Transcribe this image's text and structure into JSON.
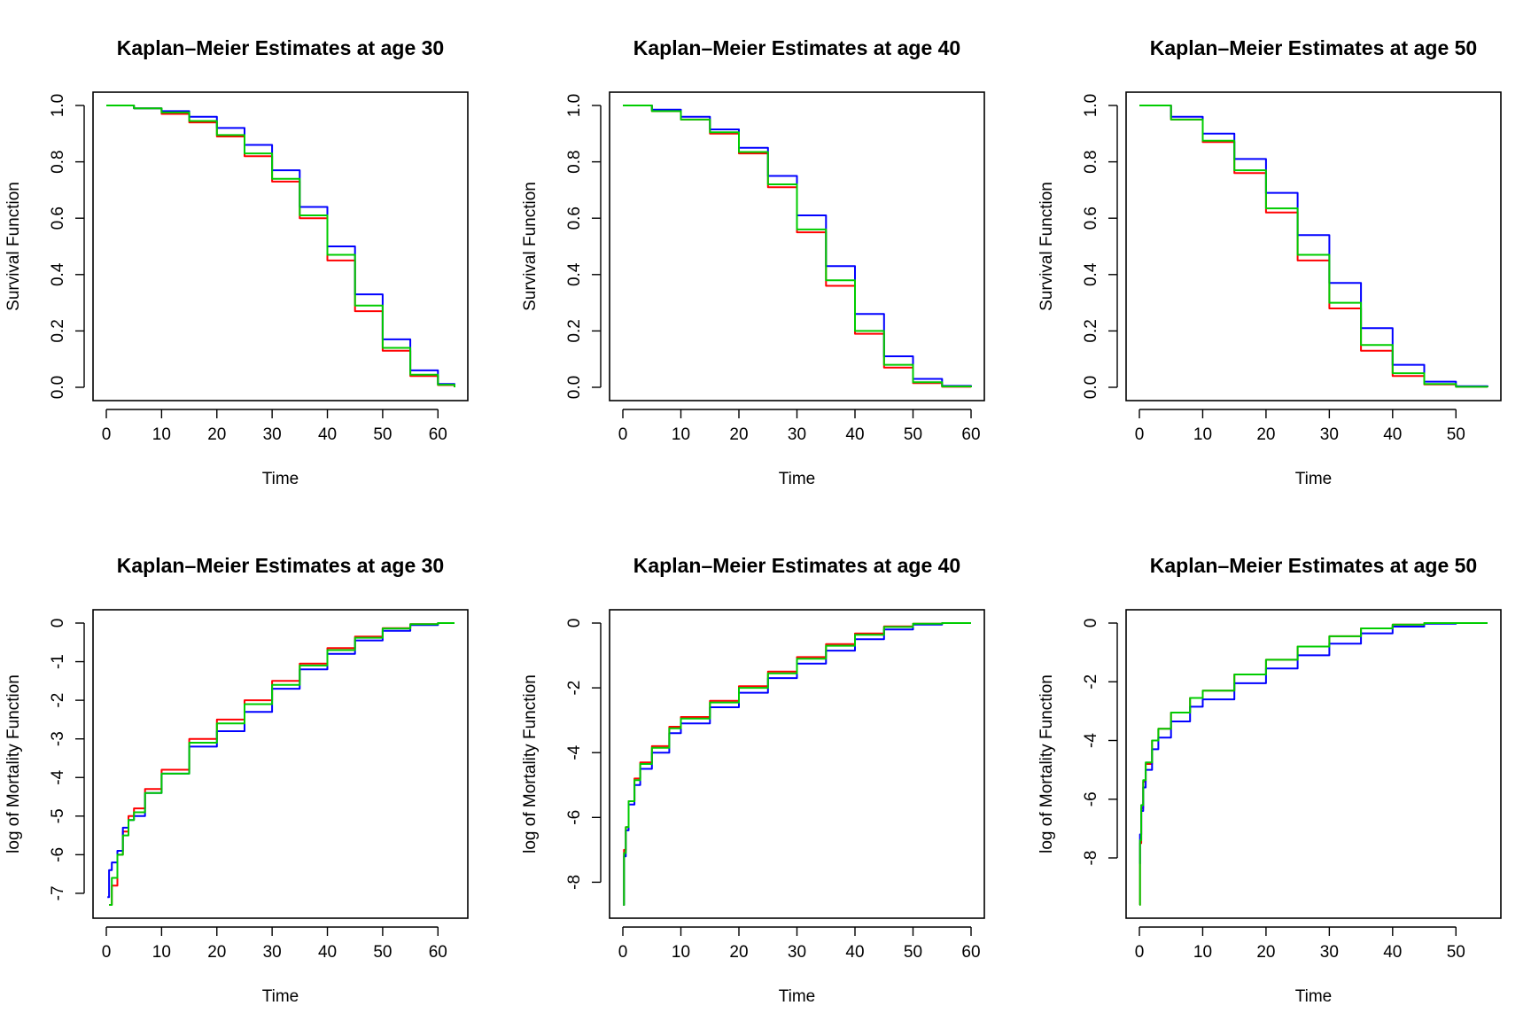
{
  "figure": {
    "background": "#ffffff"
  },
  "series_colors": [
    "#ff0000",
    "#0000ff",
    "#00cc00"
  ],
  "chart_data": [
    {
      "type": "line",
      "title": "Kaplan–Meier Estimates at age 30",
      "xlabel": "Time",
      "ylabel": "Survival Function",
      "xlim": [
        0,
        63
      ],
      "ylim": [
        0,
        1
      ],
      "xticks": [
        0,
        10,
        20,
        30,
        40,
        50,
        60
      ],
      "yticks": [
        0.0,
        0.2,
        0.4,
        0.6,
        0.8,
        1.0
      ],
      "ytick_labels": [
        "0.0",
        "0.2",
        "0.4",
        "0.6",
        "0.8",
        "1.0"
      ],
      "grid": false,
      "series": [
        {
          "color": "#ff0000",
          "x": [
            0,
            5,
            10,
            15,
            20,
            25,
            30,
            35,
            40,
            45,
            50,
            55,
            60,
            63
          ],
          "y": [
            1.0,
            0.99,
            0.97,
            0.94,
            0.89,
            0.82,
            0.73,
            0.6,
            0.45,
            0.27,
            0.13,
            0.04,
            0.008,
            0.0
          ]
        },
        {
          "color": "#0000ff",
          "x": [
            0,
            5,
            10,
            15,
            20,
            25,
            30,
            35,
            40,
            45,
            50,
            55,
            60,
            63
          ],
          "y": [
            1.0,
            0.99,
            0.98,
            0.96,
            0.92,
            0.86,
            0.77,
            0.64,
            0.5,
            0.33,
            0.17,
            0.06,
            0.012,
            0.0
          ]
        },
        {
          "color": "#00cc00",
          "x": [
            0,
            5,
            10,
            15,
            20,
            25,
            30,
            35,
            40,
            45,
            50,
            55,
            60,
            63
          ],
          "y": [
            1.0,
            0.99,
            0.975,
            0.945,
            0.895,
            0.83,
            0.74,
            0.61,
            0.47,
            0.29,
            0.14,
            0.045,
            0.009,
            0.0
          ]
        }
      ]
    },
    {
      "type": "line",
      "title": "Kaplan–Meier Estimates at age 40",
      "xlabel": "Time",
      "ylabel": "Survival Function",
      "xlim": [
        0,
        60
      ],
      "ylim": [
        0,
        1
      ],
      "xticks": [
        0,
        10,
        20,
        30,
        40,
        50,
        60
      ],
      "yticks": [
        0.0,
        0.2,
        0.4,
        0.6,
        0.8,
        1.0
      ],
      "ytick_labels": [
        "0.0",
        "0.2",
        "0.4",
        "0.6",
        "0.8",
        "1.0"
      ],
      "grid": false,
      "series": [
        {
          "color": "#ff0000",
          "x": [
            0,
            5,
            10,
            15,
            20,
            25,
            30,
            35,
            40,
            45,
            50,
            55,
            60
          ],
          "y": [
            1.0,
            0.98,
            0.95,
            0.9,
            0.83,
            0.71,
            0.55,
            0.36,
            0.19,
            0.07,
            0.015,
            0.002,
            0.0
          ]
        },
        {
          "color": "#0000ff",
          "x": [
            0,
            5,
            10,
            15,
            20,
            25,
            30,
            35,
            40,
            45,
            50,
            55,
            60
          ],
          "y": [
            1.0,
            0.985,
            0.96,
            0.915,
            0.85,
            0.75,
            0.61,
            0.43,
            0.26,
            0.11,
            0.03,
            0.005,
            0.0
          ]
        },
        {
          "color": "#00cc00",
          "x": [
            0,
            5,
            10,
            15,
            20,
            25,
            30,
            35,
            40,
            45,
            50,
            55,
            60
          ],
          "y": [
            1.0,
            0.98,
            0.95,
            0.905,
            0.835,
            0.72,
            0.56,
            0.38,
            0.2,
            0.08,
            0.018,
            0.003,
            0.0
          ]
        }
      ]
    },
    {
      "type": "line",
      "title": "Kaplan–Meier Estimates at age 50",
      "xlabel": "Time",
      "ylabel": "Survival Function",
      "xlim": [
        0,
        55
      ],
      "ylim": [
        0,
        1
      ],
      "xticks": [
        0,
        10,
        20,
        30,
        40,
        50
      ],
      "yticks": [
        0.0,
        0.2,
        0.4,
        0.6,
        0.8,
        1.0
      ],
      "ytick_labels": [
        "0.0",
        "0.2",
        "0.4",
        "0.6",
        "0.8",
        "1.0"
      ],
      "grid": false,
      "series": [
        {
          "color": "#ff0000",
          "x": [
            0,
            5,
            10,
            15,
            20,
            25,
            30,
            35,
            40,
            45,
            50,
            55
          ],
          "y": [
            1.0,
            0.95,
            0.87,
            0.76,
            0.62,
            0.45,
            0.28,
            0.13,
            0.04,
            0.01,
            0.002,
            0.0
          ]
        },
        {
          "color": "#0000ff",
          "x": [
            0,
            5,
            10,
            15,
            20,
            25,
            30,
            35,
            40,
            45,
            50,
            55
          ],
          "y": [
            1.0,
            0.96,
            0.9,
            0.81,
            0.69,
            0.54,
            0.37,
            0.21,
            0.08,
            0.02,
            0.004,
            0.0
          ]
        },
        {
          "color": "#00cc00",
          "x": [
            0,
            5,
            10,
            15,
            20,
            25,
            30,
            35,
            40,
            45,
            50,
            55
          ],
          "y": [
            1.0,
            0.95,
            0.875,
            0.77,
            0.635,
            0.47,
            0.3,
            0.15,
            0.05,
            0.012,
            0.002,
            0.0
          ]
        }
      ]
    },
    {
      "type": "line",
      "title": "Kaplan–Meier Estimates at age 30",
      "xlabel": "Time",
      "ylabel": "log of Mortality Function",
      "xlim": [
        0,
        63
      ],
      "ylim": [
        -7.3,
        0
      ],
      "xticks": [
        0,
        10,
        20,
        30,
        40,
        50,
        60
      ],
      "yticks": [
        -7,
        -6,
        -5,
        -4,
        -3,
        -2,
        -1,
        0
      ],
      "ytick_labels": [
        "-7",
        "-6",
        "-5",
        "-4",
        "-3",
        "-2",
        "-1",
        "0"
      ],
      "grid": false,
      "series": [
        {
          "color": "#ff0000",
          "x": [
            0.5,
            1,
            2,
            3,
            4,
            5,
            7,
            10,
            15,
            20,
            25,
            30,
            35,
            40,
            45,
            50,
            55,
            60,
            63
          ],
          "y": [
            -7.3,
            -6.8,
            -6.0,
            -5.4,
            -5.0,
            -4.8,
            -4.3,
            -3.8,
            -3.0,
            -2.5,
            -2.0,
            -1.5,
            -1.05,
            -0.65,
            -0.35,
            -0.13,
            -0.03,
            0,
            0
          ]
        },
        {
          "color": "#0000ff",
          "x": [
            0.2,
            0.5,
            1,
            2,
            3,
            4,
            5,
            7,
            10,
            15,
            20,
            25,
            30,
            35,
            40,
            45,
            50,
            55,
            60,
            63
          ],
          "y": [
            -7.1,
            -6.4,
            -6.2,
            -5.9,
            -5.3,
            -5.1,
            -5.0,
            -4.4,
            -3.9,
            -3.2,
            -2.8,
            -2.3,
            -1.7,
            -1.2,
            -0.8,
            -0.45,
            -0.2,
            -0.05,
            0,
            0
          ]
        },
        {
          "color": "#00cc00",
          "x": [
            0.5,
            1,
            2,
            3,
            4,
            5,
            7,
            10,
            15,
            20,
            25,
            30,
            35,
            40,
            45,
            50,
            55,
            60,
            63
          ],
          "y": [
            -7.3,
            -6.6,
            -6.0,
            -5.5,
            -5.1,
            -4.9,
            -4.4,
            -3.9,
            -3.1,
            -2.6,
            -2.1,
            -1.6,
            -1.1,
            -0.7,
            -0.38,
            -0.14,
            -0.03,
            0,
            0
          ]
        }
      ]
    },
    {
      "type": "line",
      "title": "Kaplan–Meier Estimates at age 40",
      "xlabel": "Time",
      "ylabel": "log of Mortality Function",
      "xlim": [
        0,
        60
      ],
      "ylim": [
        -8.7,
        0
      ],
      "xticks": [
        0,
        10,
        20,
        30,
        40,
        50,
        60
      ],
      "yticks": [
        -8,
        -6,
        -4,
        -2,
        0
      ],
      "ytick_labels": [
        "-8",
        "-6",
        "-4",
        "-2",
        "0"
      ],
      "grid": false,
      "series": [
        {
          "color": "#ff0000",
          "x": [
            0.05,
            0.2,
            0.5,
            1,
            2,
            3,
            5,
            8,
            10,
            15,
            20,
            25,
            30,
            35,
            40,
            45,
            50,
            55,
            60
          ],
          "y": [
            -8.7,
            -7.0,
            -6.3,
            -5.5,
            -4.8,
            -4.3,
            -3.8,
            -3.2,
            -2.9,
            -2.4,
            -1.95,
            -1.5,
            -1.05,
            -0.65,
            -0.32,
            -0.1,
            -0.02,
            0,
            0
          ]
        },
        {
          "color": "#0000ff",
          "x": [
            0.05,
            0.2,
            0.5,
            1,
            2,
            3,
            5,
            8,
            10,
            15,
            20,
            25,
            30,
            35,
            40,
            45,
            50,
            55,
            60
          ],
          "y": [
            -8.7,
            -7.2,
            -6.4,
            -5.6,
            -5.0,
            -4.5,
            -4.0,
            -3.4,
            -3.1,
            -2.6,
            -2.15,
            -1.7,
            -1.25,
            -0.85,
            -0.5,
            -0.2,
            -0.05,
            0,
            0
          ]
        },
        {
          "color": "#00cc00",
          "x": [
            0.05,
            0.2,
            0.5,
            1,
            2,
            3,
            5,
            8,
            10,
            15,
            20,
            25,
            30,
            35,
            40,
            45,
            50,
            55,
            60
          ],
          "y": [
            -8.7,
            -7.1,
            -6.3,
            -5.5,
            -4.85,
            -4.35,
            -3.85,
            -3.25,
            -2.95,
            -2.45,
            -2.0,
            -1.55,
            -1.1,
            -0.7,
            -0.36,
            -0.12,
            -0.02,
            0,
            0
          ]
        }
      ]
    },
    {
      "type": "line",
      "title": "Kaplan–Meier Estimates at age 50",
      "xlabel": "Time",
      "ylabel": "log of Mortality Function",
      "xlim": [
        0,
        55
      ],
      "ylim": [
        -9.6,
        0
      ],
      "xticks": [
        0,
        10,
        20,
        30,
        40,
        50
      ],
      "yticks": [
        -8,
        -6,
        -4,
        -2,
        0
      ],
      "ytick_labels": [
        "-8",
        "-6",
        "-4",
        "-2",
        "0"
      ],
      "grid": false,
      "series": [
        {
          "color": "#ff0000",
          "x": [
            0.02,
            0.1,
            0.3,
            0.6,
            1,
            2,
            3,
            5,
            8,
            10,
            15,
            20,
            25,
            30,
            35,
            40,
            45,
            50,
            55
          ],
          "y": [
            -9.6,
            -7.5,
            -6.3,
            -5.4,
            -4.8,
            -4.0,
            -3.6,
            -3.05,
            -2.55,
            -2.3,
            -1.75,
            -1.25,
            -0.8,
            -0.45,
            -0.18,
            -0.05,
            0,
            0,
            0
          ]
        },
        {
          "color": "#0000ff",
          "x": [
            0.02,
            0.1,
            0.3,
            0.6,
            1,
            2,
            3,
            5,
            8,
            10,
            15,
            20,
            25,
            30,
            35,
            40,
            45,
            50,
            55
          ],
          "y": [
            -8.2,
            -7.2,
            -6.4,
            -5.6,
            -5.0,
            -4.3,
            -3.9,
            -3.35,
            -2.85,
            -2.6,
            -2.05,
            -1.55,
            -1.1,
            -0.7,
            -0.35,
            -0.12,
            -0.02,
            0,
            0
          ]
        },
        {
          "color": "#00cc00",
          "x": [
            0.02,
            0.1,
            0.3,
            0.6,
            1,
            2,
            3,
            5,
            8,
            10,
            15,
            20,
            25,
            30,
            35,
            40,
            45,
            50,
            55
          ],
          "y": [
            -9.6,
            -7.4,
            -6.2,
            -5.35,
            -4.75,
            -4.0,
            -3.6,
            -3.05,
            -2.55,
            -2.3,
            -1.75,
            -1.25,
            -0.8,
            -0.45,
            -0.18,
            -0.05,
            0,
            0,
            0
          ]
        }
      ]
    }
  ]
}
